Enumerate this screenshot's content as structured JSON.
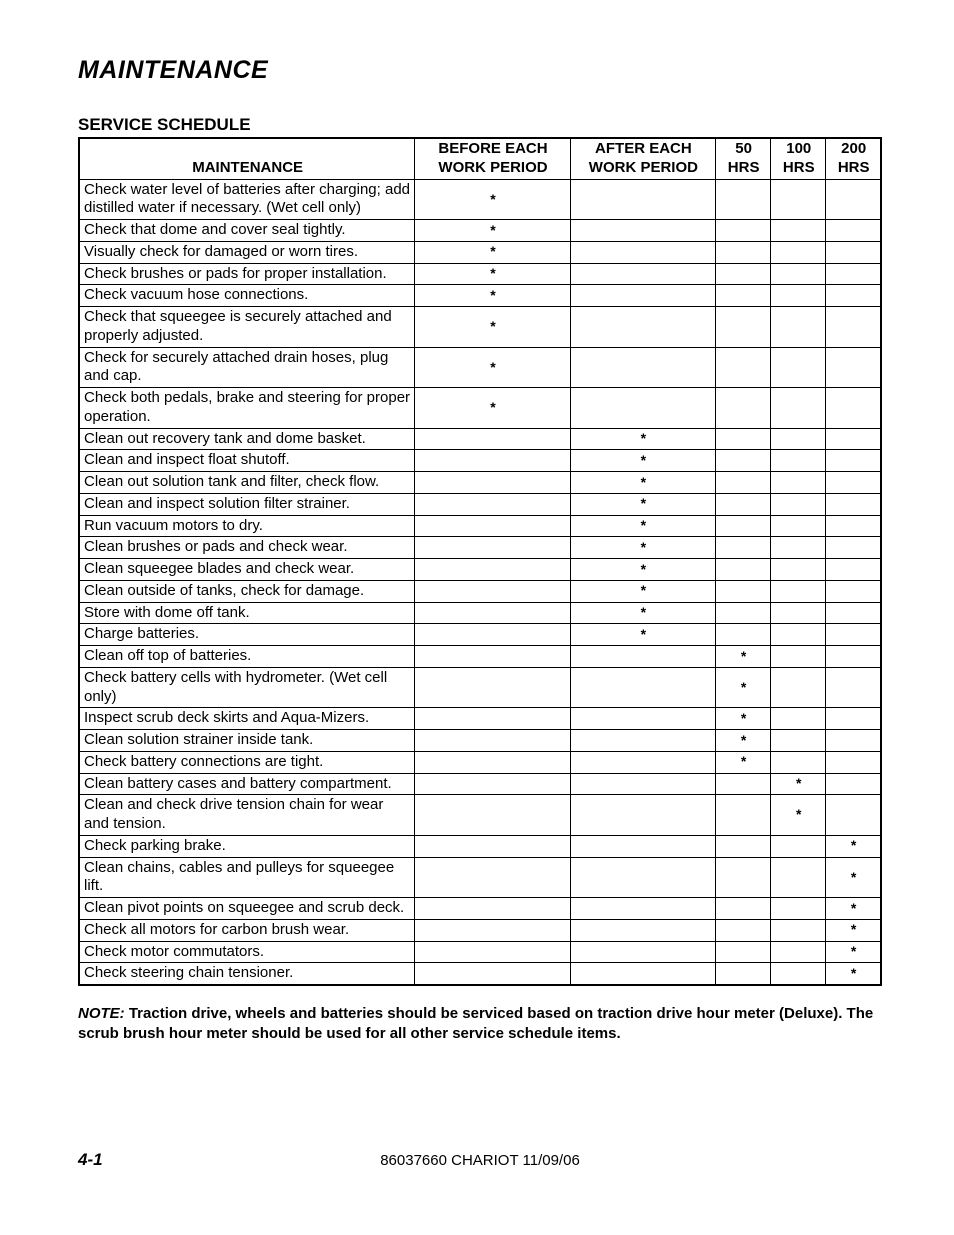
{
  "page": {
    "title": "MAINTENANCE",
    "subtitle": "SERVICE SCHEDULE",
    "page_number": "4-1",
    "footer_doc": "86037660 CHARIOT 11/09/06"
  },
  "note": {
    "label": "NOTE:",
    "text": " Traction drive, wheels and batteries should be serviced based on traction drive hour meter (Deluxe).  The scrub brush hour meter should be used for all other service schedule items."
  },
  "table": {
    "columns": [
      "MAINTENANCE",
      "BEFORE EACH WORK PERIOD",
      "AFTER EACH WORK PERIOD",
      "50 HRS",
      "100 HRS",
      "200 HRS"
    ],
    "rows": [
      {
        "task": "Check water level of batteries after charging; add distilled water if necessary. (Wet cell only)",
        "marks": [
          "*",
          "",
          "",
          "",
          ""
        ]
      },
      {
        "task": "Check that dome and cover seal tightly.",
        "marks": [
          "*",
          "",
          "",
          "",
          ""
        ]
      },
      {
        "task": "Visually check for damaged or worn tires.",
        "marks": [
          "*",
          "",
          "",
          "",
          ""
        ]
      },
      {
        "task": "Check brushes or pads for proper installation.",
        "marks": [
          "*",
          "",
          "",
          "",
          ""
        ]
      },
      {
        "task": "Check vacuum hose connections.",
        "marks": [
          "*",
          "",
          "",
          "",
          ""
        ]
      },
      {
        "task": "Check that squeegee is securely attached and properly adjusted.",
        "marks": [
          "*",
          "",
          "",
          "",
          ""
        ]
      },
      {
        "task": "Check for securely attached drain hoses, plug and cap.",
        "marks": [
          "*",
          "",
          "",
          "",
          ""
        ]
      },
      {
        "task": "Check both pedals, brake and steering for proper operation.",
        "marks": [
          "*",
          "",
          "",
          "",
          ""
        ]
      },
      {
        "task": "Clean out recovery tank and dome basket.",
        "marks": [
          "",
          "*",
          "",
          "",
          ""
        ]
      },
      {
        "task": "Clean and inspect float shutoff.",
        "marks": [
          "",
          "*",
          "",
          "",
          ""
        ]
      },
      {
        "task": "Clean out solution tank and filter, check flow.",
        "marks": [
          "",
          "*",
          "",
          "",
          ""
        ]
      },
      {
        "task": "Clean and inspect solution filter strainer.",
        "marks": [
          "",
          "*",
          "",
          "",
          ""
        ]
      },
      {
        "task": "Run vacuum motors to dry.",
        "marks": [
          "",
          "*",
          "",
          "",
          ""
        ]
      },
      {
        "task": "Clean brushes or pads and check wear.",
        "marks": [
          "",
          "*",
          "",
          "",
          ""
        ]
      },
      {
        "task": "Clean squeegee blades and check wear.",
        "marks": [
          "",
          "*",
          "",
          "",
          ""
        ]
      },
      {
        "task": "Clean outside of tanks, check for damage.",
        "marks": [
          "",
          "*",
          "",
          "",
          ""
        ]
      },
      {
        "task": "Store with dome off tank.",
        "marks": [
          "",
          "*",
          "",
          "",
          ""
        ]
      },
      {
        "task": "Charge batteries.",
        "marks": [
          "",
          "*",
          "",
          "",
          ""
        ]
      },
      {
        "task": "Clean off top of batteries.",
        "marks": [
          "",
          "",
          "*",
          "",
          ""
        ]
      },
      {
        "task": "Check battery cells with hydrometer. (Wet cell only)",
        "marks": [
          "",
          "",
          "*",
          "",
          ""
        ]
      },
      {
        "task": "Inspect scrub deck skirts and Aqua-Mizers.",
        "marks": [
          "",
          "",
          "*",
          "",
          ""
        ]
      },
      {
        "task": "Clean solution strainer inside tank.",
        "marks": [
          "",
          "",
          "*",
          "",
          ""
        ]
      },
      {
        "task": "Check battery connections are tight.",
        "marks": [
          "",
          "",
          "*",
          "",
          ""
        ]
      },
      {
        "task": "Clean battery cases and battery compartment.",
        "marks": [
          "",
          "",
          "",
          "*",
          ""
        ]
      },
      {
        "task": "Clean and check drive tension chain for wear and tension.",
        "marks": [
          "",
          "",
          "",
          "*",
          ""
        ]
      },
      {
        "task": "Check parking brake.",
        "marks": [
          "",
          "",
          "",
          "",
          "*"
        ]
      },
      {
        "task": "Clean chains, cables and pulleys for squeegee lift.",
        "marks": [
          "",
          "",
          "",
          "",
          "*"
        ]
      },
      {
        "task": "Clean pivot points on squeegee and scrub deck.",
        "marks": [
          "",
          "",
          "",
          "",
          "*"
        ]
      },
      {
        "task": "Check all motors for carbon brush wear.",
        "marks": [
          "",
          "",
          "",
          "",
          "*"
        ]
      },
      {
        "task": "Check motor commutators.",
        "marks": [
          "",
          "",
          "",
          "",
          "*"
        ]
      },
      {
        "task": "Check steering chain tensioner.",
        "marks": [
          "",
          "",
          "",
          "",
          "*"
        ]
      }
    ]
  }
}
